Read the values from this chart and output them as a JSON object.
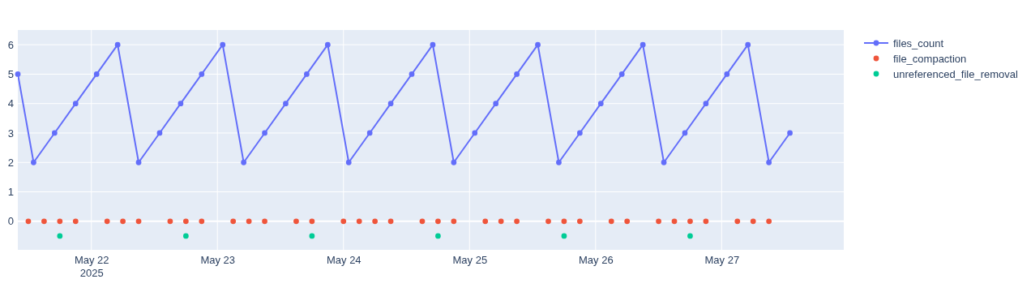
{
  "chart_data": {
    "type": "line",
    "marker": "circle",
    "grid": true,
    "legend": "top right",
    "xlim": [
      "2025-05-21T10:00",
      "2025-05-27T23:15"
    ],
    "xticks": [
      {
        "value": "2025-05-22",
        "label": "May 22\n2025"
      },
      {
        "value": "2025-05-23",
        "label": "May 23"
      },
      {
        "value": "2025-05-24",
        "label": "May 24"
      },
      {
        "value": "2025-05-25",
        "label": "May 25"
      },
      {
        "value": "2025-05-26",
        "label": "May 26"
      },
      {
        "value": "2025-05-27",
        "label": "May 27"
      }
    ],
    "ylim": [
      -0.97,
      6.5
    ],
    "yticks": [
      0,
      1,
      2,
      3,
      4,
      5,
      6
    ],
    "series": [
      {
        "name": "files_count",
        "color": "#636efa",
        "x": [
          "2025-05-21T10:00",
          "2025-05-21T13:00",
          "2025-05-21T17:00",
          "2025-05-21T21:00",
          "2025-05-22T01:00",
          "2025-05-22T05:00",
          "2025-05-22T09:00",
          "2025-05-22T13:00",
          "2025-05-22T17:00",
          "2025-05-22T21:00",
          "2025-05-23T01:00",
          "2025-05-23T05:00",
          "2025-05-23T09:00",
          "2025-05-23T13:00",
          "2025-05-23T17:00",
          "2025-05-23T21:00",
          "2025-05-24T01:00",
          "2025-05-24T05:00",
          "2025-05-24T09:00",
          "2025-05-24T13:00",
          "2025-05-24T17:00",
          "2025-05-24T21:00",
          "2025-05-25T01:00",
          "2025-05-25T05:00",
          "2025-05-25T09:00",
          "2025-05-25T13:00",
          "2025-05-25T17:00",
          "2025-05-25T21:00",
          "2025-05-26T01:00",
          "2025-05-26T05:00",
          "2025-05-26T09:00",
          "2025-05-26T13:00",
          "2025-05-26T17:00",
          "2025-05-26T21:00",
          "2025-05-27T01:00",
          "2025-05-27T05:00",
          "2025-05-27T09:00",
          "2025-05-27T13:00"
        ],
        "values": [
          5,
          2,
          3,
          4,
          5,
          6,
          2,
          3,
          4,
          5,
          6,
          2,
          3,
          4,
          5,
          6,
          2,
          3,
          4,
          5,
          6,
          2,
          3,
          4,
          5,
          6,
          2,
          3,
          4,
          5,
          6,
          2,
          3,
          4,
          5,
          6,
          2,
          3
        ]
      },
      {
        "name": "file_compaction",
        "type": "scatter",
        "color": "#ef553b",
        "x": [
          "2025-05-21T12:00",
          "2025-05-21T15:00",
          "2025-05-21T18:00",
          "2025-05-21T21:00",
          "2025-05-22T03:00",
          "2025-05-22T06:00",
          "2025-05-22T09:00",
          "2025-05-22T15:00",
          "2025-05-22T18:00",
          "2025-05-22T21:00",
          "2025-05-23T03:00",
          "2025-05-23T06:00",
          "2025-05-23T09:00",
          "2025-05-23T15:00",
          "2025-05-23T18:00",
          "2025-05-24T00:00",
          "2025-05-24T03:00",
          "2025-05-24T06:00",
          "2025-05-24T09:00",
          "2025-05-24T15:00",
          "2025-05-24T18:00",
          "2025-05-24T21:00",
          "2025-05-25T03:00",
          "2025-05-25T06:00",
          "2025-05-25T09:00",
          "2025-05-25T15:00",
          "2025-05-25T18:00",
          "2025-05-25T21:00",
          "2025-05-26T03:00",
          "2025-05-26T06:00",
          "2025-05-26T12:00",
          "2025-05-26T15:00",
          "2025-05-26T18:00",
          "2025-05-26T21:00",
          "2025-05-27T03:00",
          "2025-05-27T06:00",
          "2025-05-27T09:00"
        ],
        "values": [
          0,
          0,
          0,
          0,
          0,
          0,
          0,
          0,
          0,
          0,
          0,
          0,
          0,
          0,
          0,
          0,
          0,
          0,
          0,
          0,
          0,
          0,
          0,
          0,
          0,
          0,
          0,
          0,
          0,
          0,
          0,
          0,
          0,
          0,
          0,
          0,
          0
        ]
      },
      {
        "name": "unreferenced_file_removal",
        "type": "scatter",
        "color": "#00cc96",
        "x": [
          "2025-05-21T18:00",
          "2025-05-22T18:00",
          "2025-05-23T18:00",
          "2025-05-24T18:00",
          "2025-05-25T18:00",
          "2025-05-26T18:00"
        ],
        "values": [
          -0.5,
          -0.5,
          -0.5,
          -0.5,
          -0.5,
          -0.5
        ]
      }
    ]
  }
}
